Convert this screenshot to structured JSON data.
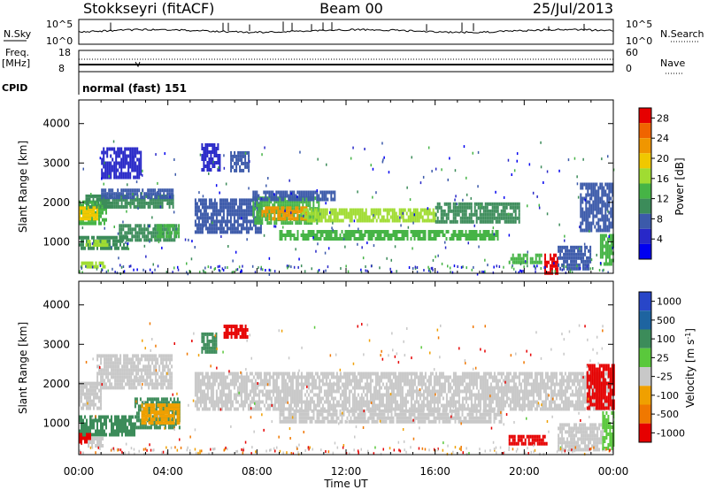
{
  "header": {
    "station": "Stokkseyri (fitACF)",
    "beam": "Beam 00",
    "date": "25/Jul/2013"
  },
  "panels": {
    "nsky": {
      "left_label": "N.Sky",
      "left_ticks": [
        "10^5",
        "10^0"
      ],
      "right_ticks": [
        "10^5",
        "10^0"
      ],
      "right_label": "N.Search"
    },
    "freq": {
      "left_label_1": "Freq.",
      "left_label_2": "[MHz]",
      "left_ticks": [
        "18",
        "8"
      ],
      "right_ticks": [
        "60",
        "0"
      ],
      "right_label": "Nave"
    },
    "cpid": {
      "label": "CPID",
      "value": "normal (fast) 151"
    }
  },
  "chart_data": [
    {
      "type": "heatmap",
      "title": "Power",
      "xlabel": "Time UT",
      "ylabel": "Slant Range [km]",
      "x_ticks": [
        "00:00",
        "04:00",
        "08:00",
        "12:00",
        "16:00",
        "20:00",
        "00:00"
      ],
      "x_range_hours": [
        0,
        24
      ],
      "y_ticks": [
        1000,
        2000,
        3000,
        4000
      ],
      "ylim": [
        200,
        4600
      ],
      "colorbar": {
        "label": "Power [dB]",
        "ticks": [
          4,
          8,
          12,
          16,
          20,
          24,
          28
        ],
        "range": [
          0,
          30
        ]
      },
      "regions": [
        {
          "t0": 0.0,
          "t1": 1.2,
          "r0": 1450,
          "r1": 2050,
          "level": 12
        },
        {
          "t0": 0.0,
          "t1": 0.8,
          "r0": 1600,
          "r1": 1900,
          "level": 18
        },
        {
          "t0": 0.3,
          "t1": 4.2,
          "r0": 1900,
          "r1": 2200,
          "level": 9
        },
        {
          "t0": 1.0,
          "t1": 4.2,
          "r0": 2150,
          "r1": 2350,
          "level": 7
        },
        {
          "t0": 0.0,
          "t1": 2.2,
          "r0": 850,
          "r1": 1150,
          "level": 11
        },
        {
          "t0": 0.3,
          "t1": 1.3,
          "r0": 900,
          "r1": 1050,
          "level": 17
        },
        {
          "t0": 1.8,
          "t1": 4.4,
          "r0": 1050,
          "r1": 1450,
          "level": 10
        },
        {
          "t0": 3.5,
          "t1": 4.5,
          "r0": 1150,
          "r1": 1450,
          "level": 14
        },
        {
          "t0": 0.1,
          "t1": 1.2,
          "r0": 350,
          "r1": 500,
          "level": 17
        },
        {
          "t0": 1.0,
          "t1": 2.8,
          "r0": 2600,
          "r1": 3400,
          "level": 4
        },
        {
          "t0": 5.2,
          "t1": 8.2,
          "r0": 1250,
          "r1": 2100,
          "level": 6
        },
        {
          "t0": 5.5,
          "t1": 6.3,
          "r0": 2800,
          "r1": 3500,
          "level": 5
        },
        {
          "t0": 6.8,
          "t1": 7.6,
          "r0": 2800,
          "r1": 3300,
          "level": 7
        },
        {
          "t0": 7.8,
          "t1": 10.8,
          "r0": 1450,
          "r1": 2150,
          "level": 14
        },
        {
          "t0": 8.2,
          "t1": 10.2,
          "r0": 1550,
          "r1": 1900,
          "level": 21
        },
        {
          "t0": 10.0,
          "t1": 16.0,
          "r0": 1500,
          "r1": 1850,
          "level": 15
        },
        {
          "t0": 16.0,
          "t1": 19.8,
          "r0": 1550,
          "r1": 2000,
          "level": 11
        },
        {
          "t0": 9.0,
          "t1": 18.8,
          "r0": 1100,
          "r1": 1300,
          "level": 12
        },
        {
          "t0": 7.8,
          "t1": 11.5,
          "r0": 2100,
          "r1": 2300,
          "level": 6
        },
        {
          "t0": 19.3,
          "t1": 20.8,
          "r0": 500,
          "r1": 700,
          "level": 12
        },
        {
          "t0": 20.9,
          "t1": 21.5,
          "r0": 250,
          "r1": 700,
          "level": 28
        },
        {
          "t0": 21.5,
          "t1": 23.0,
          "r0": 300,
          "r1": 900,
          "level": 8
        },
        {
          "t0": 22.5,
          "t1": 24.0,
          "r0": 1300,
          "r1": 2500,
          "level": 7
        },
        {
          "t0": 23.4,
          "t1": 24.0,
          "r0": 400,
          "r1": 1200,
          "level": 12
        }
      ]
    },
    {
      "type": "heatmap",
      "title": "Velocity",
      "xlabel": "Time UT",
      "ylabel": "Slant Range [km]",
      "x_ticks": [
        "00:00",
        "04:00",
        "08:00",
        "12:00",
        "16:00",
        "20:00",
        "00:00"
      ],
      "x_range_hours": [
        0,
        24
      ],
      "y_ticks": [
        1000,
        2000,
        3000,
        4000
      ],
      "ylim": [
        200,
        4600
      ],
      "colorbar": {
        "label": "Velocity [m s^-1]",
        "ticks": [
          "1000",
          "500",
          "100",
          "25",
          "-25",
          "-100",
          "-500",
          "-1000"
        ]
      },
      "regions": [
        {
          "t0": 0.0,
          "t1": 1.0,
          "r0": 1400,
          "r1": 2050,
          "level": 0
        },
        {
          "t0": 0.8,
          "t1": 4.2,
          "r0": 1900,
          "r1": 2750,
          "level": 0
        },
        {
          "t0": 0.0,
          "t1": 2.5,
          "r0": 750,
          "r1": 1200,
          "level": 3
        },
        {
          "t0": 2.5,
          "t1": 4.5,
          "r0": 900,
          "r1": 1650,
          "level": 3
        },
        {
          "t0": 2.8,
          "t1": 4.5,
          "r0": 1000,
          "r1": 1500,
          "level": 5
        },
        {
          "t0": 0.4,
          "t1": 1.1,
          "r0": 450,
          "r1": 650,
          "level": 0
        },
        {
          "t0": 0.0,
          "t1": 0.5,
          "r0": 550,
          "r1": 750,
          "level": 7
        },
        {
          "t0": 5.2,
          "t1": 24.0,
          "r0": 1350,
          "r1": 2300,
          "level": 0
        },
        {
          "t0": 9.0,
          "t1": 19.0,
          "r0": 1050,
          "r1": 1350,
          "level": 0
        },
        {
          "t0": 6.5,
          "t1": 7.6,
          "r0": 3200,
          "r1": 3500,
          "level": 7
        },
        {
          "t0": 5.5,
          "t1": 6.2,
          "r0": 2800,
          "r1": 3300,
          "level": 3
        },
        {
          "t0": 19.3,
          "t1": 21.0,
          "r0": 450,
          "r1": 700,
          "level": 7
        },
        {
          "t0": 21.5,
          "t1": 23.5,
          "r0": 300,
          "r1": 1000,
          "level": 0
        },
        {
          "t0": 22.8,
          "t1": 24.0,
          "r0": 1400,
          "r1": 2500,
          "level": 7
        },
        {
          "t0": 23.5,
          "t1": 24.0,
          "r0": 400,
          "r1": 1300,
          "level": 4
        }
      ]
    }
  ],
  "colors": {
    "power": [
      "#0000f0",
      "#2828c8",
      "#3c5aaa",
      "#3c8c5a",
      "#46b446",
      "#a0dc32",
      "#f0c800",
      "#f09600",
      "#f06400",
      "#e60000"
    ],
    "velocity": [
      "#c8c8c8",
      "#2846c8",
      "#1e64a0",
      "#3c8c5a",
      "#5ac83c",
      "#f0a000",
      "#f07800",
      "#e60000"
    ],
    "velocity_bar": [
      "#2846c8",
      "#1e64a0",
      "#3c8c5a",
      "#5ac83c",
      "#c8c8c8",
      "#f0a000",
      "#f07800",
      "#e60000"
    ]
  }
}
